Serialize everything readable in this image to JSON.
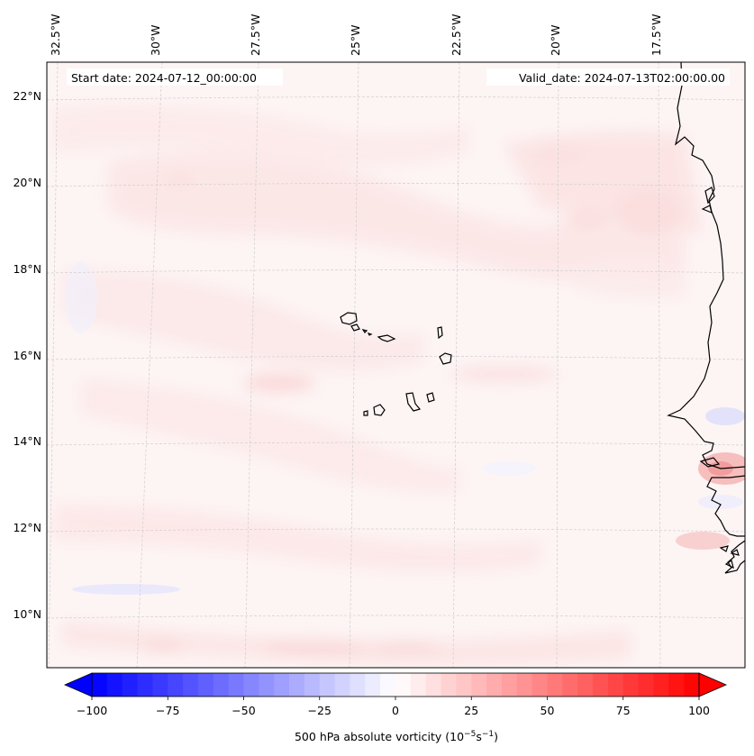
{
  "header": {
    "start_date": "Start date: 2024-07-12_00:00:00",
    "valid_date": "Valid_date: 2024-07-13T02:00:00.00"
  },
  "lon_labels": [
    "32.5°W",
    "30°W",
    "27.5°W",
    "25°W",
    "22.5°W",
    "20°W",
    "17.5°W"
  ],
  "lat_labels": [
    "22°N",
    "20°N",
    "18°N",
    "16°N",
    "14°N",
    "12°N",
    "10°N"
  ],
  "colorbar": {
    "label_prefix": "500 hPa absolute vorticity (10",
    "label_exp1": "−5",
    "label_mid": "s",
    "label_exp2": "−1",
    "label_suffix": ")",
    "ticks": [
      "−100",
      "−75",
      "−50",
      "−25",
      "0",
      "25",
      "50",
      "75",
      "100"
    ],
    "min": -100,
    "max": 100,
    "colors": {
      "low": "#0000ff",
      "mid": "#ffffff",
      "high": "#ff0000"
    }
  }
}
